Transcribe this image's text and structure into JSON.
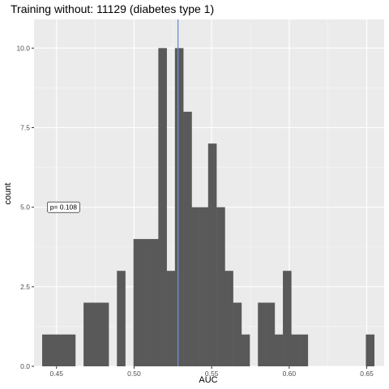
{
  "chart_data": {
    "type": "bar",
    "title": "Training without: 11129 (diabetes type 1)",
    "xlabel": "AUC",
    "ylabel": "count",
    "xlim": [
      0.4355,
      0.6612
    ],
    "ylim": [
      0,
      10.9
    ],
    "x_ticks": [
      {
        "value": 0.45,
        "label": "0.45"
      },
      {
        "value": 0.5,
        "label": "0.50"
      },
      {
        "value": 0.55,
        "label": "0.55"
      },
      {
        "value": 0.6,
        "label": "0.60"
      },
      {
        "value": 0.65,
        "label": "0.65"
      }
    ],
    "y_ticks": [
      {
        "value": 0,
        "label": "0.0"
      },
      {
        "value": 2.5,
        "label": "2.5"
      },
      {
        "value": 5,
        "label": "5.0"
      },
      {
        "value": 7.5,
        "label": "7.5"
      },
      {
        "value": 10,
        "label": "10.0"
      }
    ],
    "bin_width": 0.00535,
    "bins": [
      {
        "x": 0.4434,
        "count": 1
      },
      {
        "x": 0.4487,
        "count": 1
      },
      {
        "x": 0.4541,
        "count": 1
      },
      {
        "x": 0.4594,
        "count": 1
      },
      {
        "x": 0.4648,
        "count": 0
      },
      {
        "x": 0.4701,
        "count": 2
      },
      {
        "x": 0.4755,
        "count": 2
      },
      {
        "x": 0.4809,
        "count": 2
      },
      {
        "x": 0.4862,
        "count": 0
      },
      {
        "x": 0.4916,
        "count": 3
      },
      {
        "x": 0.4969,
        "count": 0
      },
      {
        "x": 0.5023,
        "count": 4
      },
      {
        "x": 0.5076,
        "count": 4
      },
      {
        "x": 0.513,
        "count": 4
      },
      {
        "x": 0.5183,
        "count": 10
      },
      {
        "x": 0.5237,
        "count": 3
      },
      {
        "x": 0.529,
        "count": 10
      },
      {
        "x": 0.5344,
        "count": 8
      },
      {
        "x": 0.5397,
        "count": 5
      },
      {
        "x": 0.5451,
        "count": 5
      },
      {
        "x": 0.5504,
        "count": 7
      },
      {
        "x": 0.5558,
        "count": 5
      },
      {
        "x": 0.5611,
        "count": 3
      },
      {
        "x": 0.5665,
        "count": 2
      },
      {
        "x": 0.5718,
        "count": 1
      },
      {
        "x": 0.5772,
        "count": 0
      },
      {
        "x": 0.5825,
        "count": 2
      },
      {
        "x": 0.5879,
        "count": 2
      },
      {
        "x": 0.5932,
        "count": 1
      },
      {
        "x": 0.5986,
        "count": 3
      },
      {
        "x": 0.6039,
        "count": 1
      },
      {
        "x": 0.6093,
        "count": 1
      },
      {
        "x": 0.6146,
        "count": 0
      },
      {
        "x": 0.62,
        "count": 0
      },
      {
        "x": 0.6253,
        "count": 0
      },
      {
        "x": 0.6307,
        "count": 0
      },
      {
        "x": 0.6361,
        "count": 0
      },
      {
        "x": 0.6414,
        "count": 0
      },
      {
        "x": 0.6468,
        "count": 0
      },
      {
        "x": 0.6521,
        "count": 1
      }
    ],
    "vline": {
      "x": 0.5283,
      "color": "#6b8fd8"
    },
    "annotation": {
      "text": "p= 0.108",
      "x": 0.4545,
      "y": 5.0
    },
    "bar_color": "#595959",
    "panel_background": "#ebebeb",
    "grid": true,
    "legend": "none"
  }
}
